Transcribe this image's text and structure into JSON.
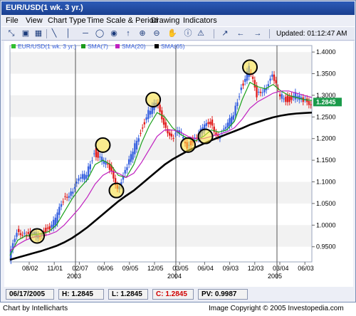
{
  "window": {
    "title": "EUR/USD(1 wk. 3 yr.)"
  },
  "menu": [
    "File",
    "View",
    "Chart Type",
    "Time Scale & Period",
    "Drawing",
    "Indicators"
  ],
  "toolbar": {
    "updated": "Updated: 01:12:47 AM",
    "icons": [
      "zoom-fit-icon",
      "print-icon",
      "save-icon",
      "draw-line-icon",
      "vertical-line-icon",
      "horizontal-line-icon",
      "circle-icon",
      "arrow-up-icon",
      "zoom-in-icon",
      "zoom-out-icon",
      "hand-icon",
      "trend-icon",
      "arrow-left-icon",
      "arrow-right-icon"
    ]
  },
  "legend": [
    {
      "name": "EUR/USD(1 wk. 3 yr.)",
      "color": "#2fbf2f"
    },
    {
      "name": "SMA(7)",
      "color": "#1a9a1a"
    },
    {
      "name": "SMA(20)",
      "color": "#c020c0"
    },
    {
      "name": "SMA(65)",
      "color": "#000000"
    }
  ],
  "chart_data": {
    "type": "line",
    "y_ticks": [
      "1.4000",
      "1.3500",
      "1.3000",
      "1.2500",
      "1.2000",
      "1.1500",
      "1.1000",
      "1.0500",
      "1.0000",
      "0.9500"
    ],
    "ylim": [
      0.915,
      1.415
    ],
    "x_tick_labels": [
      "08/02",
      "11/01",
      "02/07",
      "06/06",
      "09/05",
      "12/05",
      "03/05",
      "06/04",
      "09/03",
      "12/03",
      "03/04",
      "06/03"
    ],
    "year_labels": [
      "2003",
      "2004",
      "2005"
    ],
    "last_price_label": "1.2845",
    "x": [
      0,
      4,
      8,
      12,
      16,
      20,
      24,
      28,
      32,
      36,
      40,
      44,
      48,
      52,
      56,
      60,
      64,
      68,
      72,
      76,
      80,
      84,
      88,
      92,
      96,
      100,
      104,
      108,
      112,
      116,
      120,
      124,
      128,
      132,
      136,
      140,
      144,
      148,
      152,
      156
    ],
    "series": [
      {
        "name": "EUR/USD(1 wk. 3 yr.)",
        "values": [
          0.918,
          0.99,
          0.98,
          0.975,
          0.98,
          0.992,
          1.01,
          1.06,
          1.08,
          1.1,
          1.12,
          1.17,
          1.15,
          1.13,
          1.09,
          1.12,
          1.17,
          1.22,
          1.26,
          1.28,
          1.24,
          1.2,
          1.215,
          1.185,
          1.2,
          1.22,
          1.24,
          1.205,
          1.22,
          1.26,
          1.32,
          1.36,
          1.3,
          1.32,
          1.34,
          1.3,
          1.29,
          1.3,
          1.285,
          1.2845
        ]
      },
      {
        "name": "SMA(7)",
        "values": [
          0.93,
          0.965,
          0.975,
          0.978,
          0.98,
          0.985,
          1.0,
          1.03,
          1.06,
          1.085,
          1.105,
          1.14,
          1.15,
          1.14,
          1.115,
          1.11,
          1.14,
          1.19,
          1.23,
          1.26,
          1.25,
          1.225,
          1.21,
          1.2,
          1.195,
          1.205,
          1.22,
          1.215,
          1.22,
          1.24,
          1.29,
          1.33,
          1.32,
          1.315,
          1.325,
          1.31,
          1.3,
          1.295,
          1.29,
          1.288
        ]
      },
      {
        "name": "SMA(20)",
        "values": [
          0.94,
          0.955,
          0.965,
          0.972,
          0.975,
          0.978,
          0.985,
          1.0,
          1.02,
          1.04,
          1.065,
          1.095,
          1.115,
          1.125,
          1.12,
          1.11,
          1.12,
          1.145,
          1.175,
          1.205,
          1.22,
          1.22,
          1.215,
          1.205,
          1.2,
          1.2,
          1.205,
          1.21,
          1.215,
          1.225,
          1.245,
          1.27,
          1.285,
          1.295,
          1.305,
          1.31,
          1.31,
          1.305,
          1.3,
          1.295
        ]
      },
      {
        "name": "SMA(65)",
        "values": [
          0.92,
          0.925,
          0.93,
          0.935,
          0.94,
          0.946,
          0.952,
          0.96,
          0.97,
          0.982,
          0.995,
          1.01,
          1.025,
          1.04,
          1.055,
          1.068,
          1.08,
          1.095,
          1.11,
          1.125,
          1.14,
          1.152,
          1.162,
          1.172,
          1.18,
          1.188,
          1.196,
          1.203,
          1.21,
          1.217,
          1.224,
          1.232,
          1.238,
          1.244,
          1.249,
          1.253,
          1.256,
          1.258,
          1.259,
          1.26
        ]
      }
    ],
    "circles": [
      {
        "x": 14,
        "y": 0.975
      },
      {
        "x": 48,
        "y": 1.185
      },
      {
        "x": 55,
        "y": 1.08
      },
      {
        "x": 74,
        "y": 1.29
      },
      {
        "x": 92,
        "y": 1.185
      },
      {
        "x": 101,
        "y": 1.205
      },
      {
        "x": 124,
        "y": 1.365
      }
    ]
  },
  "status": {
    "date": "06/17/2005",
    "high": "H: 1.2845",
    "low": "L: 1.2845",
    "close": "C: 1.2845",
    "pv": "PV: 0.9987"
  },
  "footer": {
    "left": "Chart by Intellicharts",
    "right": "Image Copyright © 2005 Investopedia.com"
  }
}
